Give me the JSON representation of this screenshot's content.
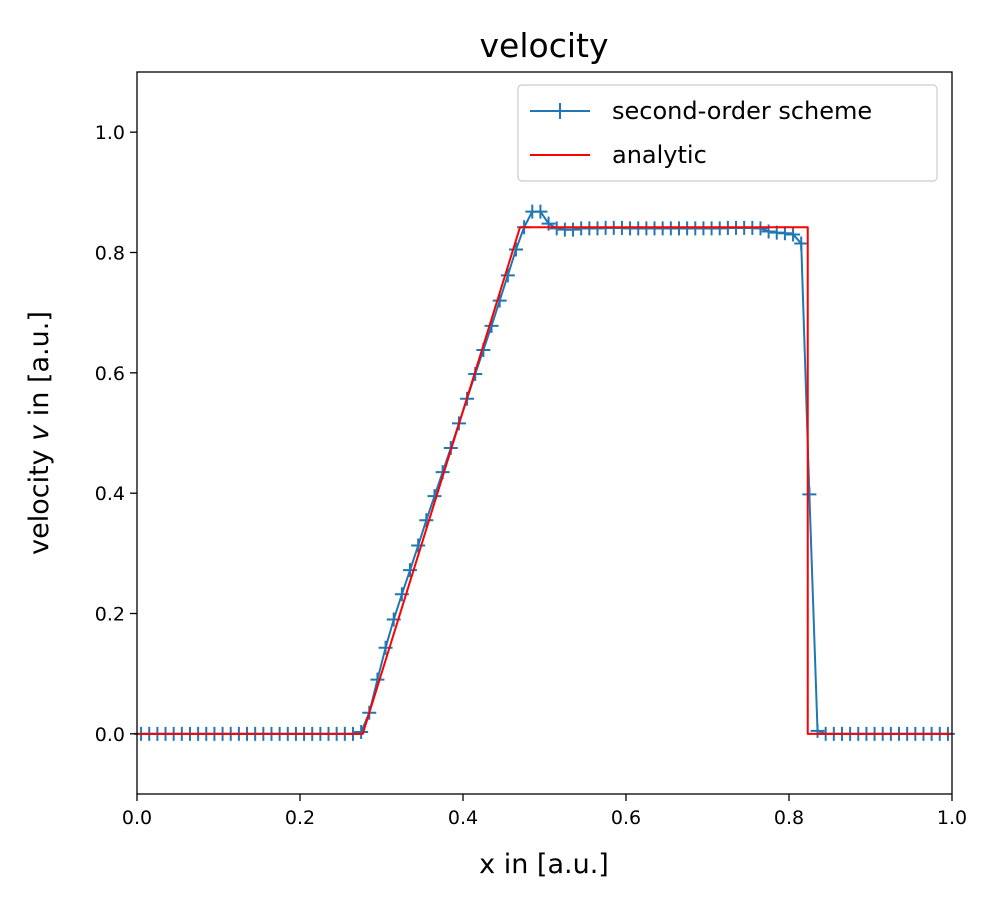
{
  "chart_data": {
    "type": "line",
    "title": "velocity",
    "xlabel": "x in [a.u.]",
    "ylabel_parts": [
      "velocity ",
      "v",
      " in [a.u.]"
    ],
    "xlim": [
      0.0,
      1.0
    ],
    "ylim": [
      -0.1,
      1.1
    ],
    "xticks": [
      "0.0",
      "0.2",
      "0.4",
      "0.6",
      "0.8",
      "1.0"
    ],
    "yticks": [
      "0.0",
      "0.2",
      "0.4",
      "0.6",
      "0.8",
      "1.0"
    ],
    "grid": false,
    "legend_position": "upper right",
    "series": [
      {
        "name": "second-order scheme",
        "color": "#1f77b4",
        "marker": "plus",
        "x": [
          0.005,
          0.015,
          0.025,
          0.035,
          0.045,
          0.055,
          0.065,
          0.075,
          0.085,
          0.095,
          0.105,
          0.115,
          0.125,
          0.135,
          0.145,
          0.155,
          0.165,
          0.175,
          0.185,
          0.195,
          0.205,
          0.215,
          0.225,
          0.235,
          0.245,
          0.255,
          0.265,
          0.275,
          0.285,
          0.295,
          0.305,
          0.315,
          0.325,
          0.335,
          0.345,
          0.355,
          0.365,
          0.375,
          0.385,
          0.395,
          0.405,
          0.415,
          0.425,
          0.435,
          0.445,
          0.455,
          0.465,
          0.475,
          0.485,
          0.495,
          0.505,
          0.515,
          0.525,
          0.535,
          0.545,
          0.555,
          0.565,
          0.575,
          0.585,
          0.595,
          0.605,
          0.615,
          0.625,
          0.635,
          0.645,
          0.655,
          0.665,
          0.675,
          0.685,
          0.695,
          0.705,
          0.715,
          0.725,
          0.735,
          0.745,
          0.755,
          0.765,
          0.775,
          0.785,
          0.795,
          0.805,
          0.815,
          0.825,
          0.835,
          0.845,
          0.855,
          0.865,
          0.875,
          0.885,
          0.895,
          0.905,
          0.915,
          0.925,
          0.935,
          0.945,
          0.955,
          0.965,
          0.975,
          0.985,
          0.995
        ],
        "y": [
          0,
          0,
          0,
          0,
          0,
          0,
          0,
          0,
          0,
          0,
          0,
          0,
          0,
          0,
          0,
          0,
          0,
          0,
          0,
          0,
          0,
          0,
          0,
          0,
          0,
          0,
          0,
          0.003,
          0.035,
          0.09,
          0.143,
          0.19,
          0.232,
          0.272,
          0.313,
          0.355,
          0.395,
          0.435,
          0.475,
          0.516,
          0.557,
          0.598,
          0.638,
          0.678,
          0.72,
          0.762,
          0.805,
          0.842,
          0.868,
          0.868,
          0.848,
          0.84,
          0.838,
          0.838,
          0.84,
          0.84,
          0.84,
          0.841,
          0.841,
          0.841,
          0.84,
          0.84,
          0.84,
          0.84,
          0.84,
          0.84,
          0.84,
          0.84,
          0.84,
          0.84,
          0.84,
          0.84,
          0.841,
          0.841,
          0.841,
          0.841,
          0.84,
          0.835,
          0.833,
          0.832,
          0.83,
          0.815,
          0.398,
          0.005,
          0,
          0,
          0,
          0,
          0,
          0,
          0,
          0,
          0,
          0,
          0,
          0,
          0,
          0,
          0,
          0
        ]
      },
      {
        "name": "analytic",
        "color": "#ff0000",
        "marker": "none",
        "x": [
          0.0,
          0.277,
          0.47,
          0.823,
          0.823,
          1.0
        ],
        "y": [
          0.0,
          0.0,
          0.842,
          0.842,
          0.0,
          0.0
        ]
      }
    ]
  }
}
